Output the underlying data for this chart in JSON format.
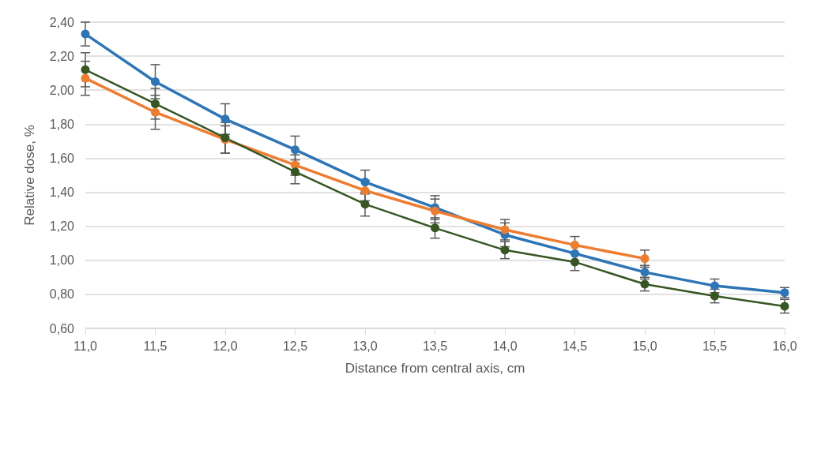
{
  "chart_data": {
    "type": "line",
    "xlabel": "Distance from central axis, cm",
    "ylabel": "Relative dose, %",
    "x": [
      11,
      11.5,
      12,
      12.5,
      13,
      13.5,
      14,
      14.5,
      15,
      15.5,
      16
    ],
    "series": [
      {
        "color": "#2e75b6",
        "values": [
          2.33,
          2.05,
          1.83,
          1.65,
          1.46,
          1.31,
          1.15,
          1.04,
          0.93,
          0.85,
          0.81
        ],
        "errors": [
          0.07,
          0.1,
          0.09,
          0.08,
          0.07,
          0.07,
          0.07,
          null,
          0.04,
          0.04,
          0.03
        ]
      },
      {
        "color": "#ed7d31",
        "values": [
          2.07,
          1.87,
          1.71,
          1.56,
          1.41,
          1.29,
          1.18,
          1.09,
          1.01,
          null,
          null
        ],
        "errors": [
          0.1,
          0.1,
          0.08,
          0.06,
          0.06,
          0.07,
          0.06,
          0.05,
          0.05,
          null,
          null
        ]
      },
      {
        "color": "#375623",
        "values": [
          2.12,
          1.92,
          1.72,
          1.52,
          1.33,
          1.19,
          1.06,
          0.99,
          0.86,
          0.79,
          0.73
        ],
        "errors": [
          0.1,
          0.09,
          0.09,
          0.07,
          0.07,
          0.06,
          0.05,
          0.05,
          0.04,
          0.04,
          0.04
        ]
      }
    ],
    "xlim": [
      11,
      16
    ],
    "xticks": [
      {
        "value": 11,
        "label": "11,0"
      },
      {
        "value": 11.5,
        "label": "11,5"
      },
      {
        "value": 12,
        "label": "12,0"
      },
      {
        "value": 12.5,
        "label": "12,5"
      },
      {
        "value": 13,
        "label": "13,0"
      },
      {
        "value": 13.5,
        "label": "13,5"
      },
      {
        "value": 14,
        "label": "14,0"
      },
      {
        "value": 14.5,
        "label": "14,5"
      },
      {
        "value": 15,
        "label": "15,0"
      },
      {
        "value": 15.5,
        "label": "15,5"
      },
      {
        "value": 16,
        "label": "16,0"
      }
    ],
    "ylim": [
      0.6,
      2.4
    ],
    "yticks": [
      {
        "value": 0.6,
        "label": "0,60"
      },
      {
        "value": 0.8,
        "label": "0,80"
      },
      {
        "value": 1,
        "label": "1,00"
      },
      {
        "value": 1.2,
        "label": "1,20"
      },
      {
        "value": 1.4,
        "label": "1,40"
      },
      {
        "value": 1.6,
        "label": "1,60"
      },
      {
        "value": 1.8,
        "label": "1,80"
      },
      {
        "value": 2,
        "label": "2,00"
      },
      {
        "value": 2.2,
        "label": "2,20"
      },
      {
        "value": 2.4,
        "label": "2,40"
      }
    ],
    "grid": "y",
    "marker": "circle",
    "line_style": "solid"
  }
}
